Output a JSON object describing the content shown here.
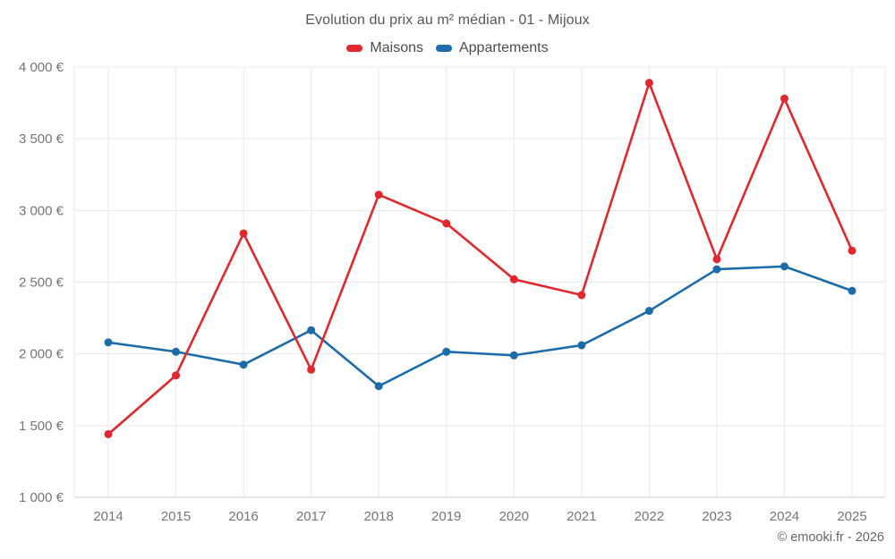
{
  "header": {
    "title": "Evolution du prix au m² médian - 01 - Mijoux"
  },
  "legend": {
    "items": [
      {
        "label": "Maisons",
        "color": "#e0282e"
      },
      {
        "label": "Appartements",
        "color": "#1b6ca8"
      }
    ]
  },
  "footer": {
    "copyright": "© emooki.fr - 2026"
  },
  "axes": {
    "y_tick_labels": [
      "4 000 €",
      "3 500 €",
      "3 000 €",
      "2 500 €",
      "2 000 €",
      "1 500 €",
      "1 000 €"
    ],
    "x_tick_labels": [
      "2014",
      "2015",
      "2016",
      "2017",
      "2018",
      "2019",
      "2020",
      "2021",
      "2022",
      "2023",
      "2024",
      "2025"
    ]
  },
  "colors": {
    "grid": "#e9e9e9",
    "axis_line": "#cccccc",
    "tick_label": "#757575",
    "maisons": "#e0282e",
    "appartements": "#1b6ca8",
    "background": "#ffffff"
  },
  "chart_data": {
    "type": "line",
    "title": "Evolution du prix au m² médian - 01 - Mijoux",
    "x": [
      2014,
      2015,
      2016,
      2017,
      2018,
      2019,
      2020,
      2021,
      2022,
      2023,
      2024,
      2025
    ],
    "series": [
      {
        "name": "Maisons",
        "color": "#e0282e",
        "values": [
          1440,
          1850,
          2840,
          1890,
          3110,
          2910,
          2520,
          2410,
          3890,
          2660,
          3780,
          2720
        ]
      },
      {
        "name": "Appartements",
        "color": "#1b6ca8",
        "values": [
          2080,
          2015,
          1925,
          2165,
          1775,
          2015,
          1990,
          2060,
          2300,
          2590,
          2610,
          2440
        ]
      }
    ],
    "xlabel": "",
    "ylabel": "",
    "ylim": [
      1000,
      4000
    ],
    "ytick_step": 500,
    "grid": true,
    "legend_position": "top",
    "marker_radius": 4.5,
    "line_width": 2.6
  }
}
